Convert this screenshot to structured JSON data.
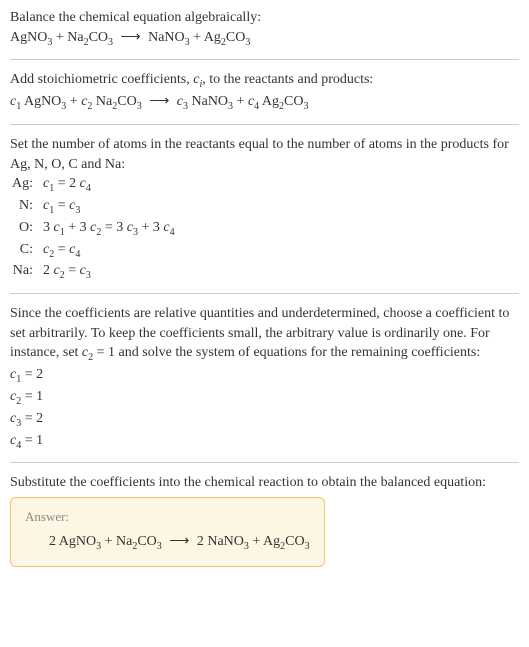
{
  "intro": {
    "line1": "Balance the chemical equation algebraically:",
    "eq": {
      "r1a": "AgNO",
      "r1s": "3",
      "plus1": " + ",
      "r2a": "Na",
      "r2s": "2",
      "r2b": "CO",
      "r2s2": "3",
      "arrow": "⟶",
      "p1a": "NaNO",
      "p1s": "3",
      "plus2": " + ",
      "p2a": "Ag",
      "p2s": "2",
      "p2b": "CO",
      "p2s2": "3"
    }
  },
  "coeffs_intro": {
    "line1a": "Add stoichiometric coefficients, ",
    "ci": "c",
    "cis": "i",
    "line1b": ", to the reactants and products:",
    "eq": {
      "c1": "c",
      "c1s": "1",
      "sp1": " ",
      "r1a": "AgNO",
      "r1s": "3",
      "plus1": " + ",
      "c2": "c",
      "c2s": "2",
      "sp2": " ",
      "r2a": "Na",
      "r2s": "2",
      "r2b": "CO",
      "r2s2": "3",
      "arrow": "⟶",
      "c3": "c",
      "c3s": "3",
      "sp3": " ",
      "p1a": "NaNO",
      "p1s": "3",
      "plus2": " + ",
      "c4": "c",
      "c4s": "4",
      "sp4": " ",
      "p2a": "Ag",
      "p2s": "2",
      "p2b": "CO",
      "p2s2": "3"
    }
  },
  "atoms_intro": "Set the number of atoms in the reactants equal to the number of atoms in the products for Ag, N, O, C and Na:",
  "atoms": [
    {
      "el": "Ag:",
      "lhs_a": "c",
      "lhs_s": "1",
      "mid": " = 2 ",
      "rhs_a": "c",
      "rhs_s": "4",
      "tail": ""
    },
    {
      "el": "N:",
      "lhs_a": "c",
      "lhs_s": "1",
      "mid": " = ",
      "rhs_a": "c",
      "rhs_s": "3",
      "tail": ""
    },
    {
      "el": "O:",
      "lhs_pre": "3 ",
      "lhs_a": "c",
      "lhs_s": "1",
      "mid": " + 3 ",
      "mid_a": "c",
      "mid_s": "2",
      "mid2": " = 3 ",
      "rhs_a": "c",
      "rhs_s": "3",
      "tail": " + 3 ",
      "tail_a": "c",
      "tail_s": "4"
    },
    {
      "el": "C:",
      "lhs_a": "c",
      "lhs_s": "2",
      "mid": " = ",
      "rhs_a": "c",
      "rhs_s": "4",
      "tail": ""
    },
    {
      "el": "Na:",
      "lhs_pre": "2 ",
      "lhs_a": "c",
      "lhs_s": "2",
      "mid": " = ",
      "rhs_a": "c",
      "rhs_s": "3",
      "tail": ""
    }
  ],
  "choose": {
    "text_a": "Since the coefficients are relative quantities and underdetermined, choose a coefficient to set arbitrarily. To keep the coefficients small, the arbitrary value is ordinarily one. For instance, set ",
    "cv": "c",
    "cvs": "2",
    "cval": " = 1",
    "text_b": " and solve the system of equations for the remaining coefficients:"
  },
  "solved": [
    {
      "c": "c",
      "s": "1",
      "v": " = 2"
    },
    {
      "c": "c",
      "s": "2",
      "v": " = 1"
    },
    {
      "c": "c",
      "s": "3",
      "v": " = 2"
    },
    {
      "c": "c",
      "s": "4",
      "v": " = 1"
    }
  ],
  "subst": "Substitute the coefficients into the chemical reaction to obtain the balanced equation:",
  "answer": {
    "label": "Answer:",
    "eq": {
      "n1": "2 ",
      "r1a": "AgNO",
      "r1s": "3",
      "plus1": " + ",
      "r2a": "Na",
      "r2s": "2",
      "r2b": "CO",
      "r2s2": "3",
      "arrow": "⟶",
      "n2": "2 ",
      "p1a": "NaNO",
      "p1s": "3",
      "plus2": " + ",
      "p2a": "Ag",
      "p2s": "2",
      "p2b": "CO",
      "p2s2": "3"
    }
  }
}
